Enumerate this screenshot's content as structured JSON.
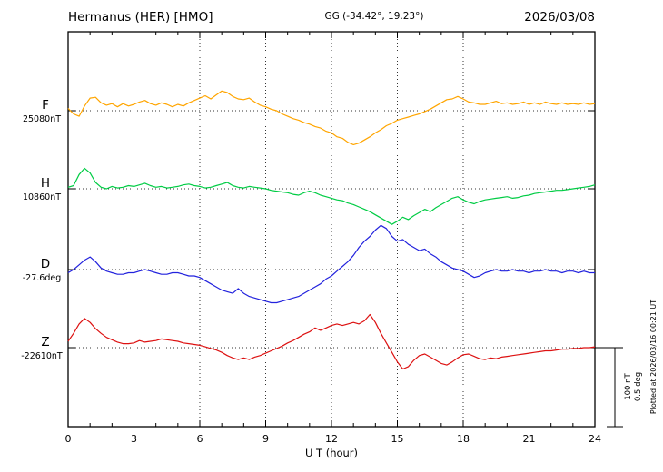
{
  "header": {
    "station": "Hermanus (HER)  [HMO]",
    "coords": "GG (-34.42°, 19.23°)",
    "date": "2026/03/08"
  },
  "side": {
    "scale_labels": [
      "100 nT",
      "0.5 deg"
    ],
    "plotted_at": "Plotted at 2026/03/16 00:21 UT"
  },
  "chart_data": {
    "type": "line",
    "title": "Hermanus (HER) [HMO] magnetogram 2026/03/08",
    "xlabel": "U T (hour)",
    "x_range": [
      0,
      24
    ],
    "x_ticks_major": [
      0,
      3,
      6,
      9,
      12,
      15,
      18,
      21,
      24
    ],
    "x_minor_step": 1,
    "grid": "dotted vertical lines at 3-hour intervals; dotted horizontal baseline per component",
    "legend_position": "left margin, colored component letters with baseline values",
    "t_start": 0,
    "t_step": 0.25,
    "scale": {
      "nT_per_division": 100,
      "deg_per_division": 0.5
    },
    "series": [
      {
        "id": "F",
        "label": "F",
        "unit": "nT",
        "baseline_label": "25080nT",
        "baseline_value": 25080,
        "color": "#ffa500",
        "offsets": [
          3,
          -4,
          -7,
          6,
          16,
          17,
          10,
          7,
          9,
          5,
          9,
          6,
          8,
          11,
          13,
          9,
          7,
          10,
          8,
          5,
          8,
          6,
          10,
          13,
          16,
          19,
          15,
          20,
          25,
          23,
          18,
          15,
          14,
          16,
          11,
          7,
          5,
          2,
          0,
          -4,
          -7,
          -10,
          -12,
          -15,
          -17,
          -20,
          -22,
          -26,
          -28,
          -33,
          -35,
          -40,
          -43,
          -41,
          -37,
          -33,
          -28,
          -24,
          -19,
          -16,
          -12,
          -10,
          -8,
          -6,
          -4,
          -1,
          2,
          6,
          10,
          14,
          15,
          18,
          15,
          11,
          10,
          8,
          8,
          10,
          12,
          9,
          10,
          8,
          9,
          11,
          8,
          10,
          8,
          11,
          9,
          8,
          10,
          8,
          9,
          8,
          10,
          8,
          9
        ]
      },
      {
        "id": "H",
        "label": "H",
        "unit": "nT",
        "baseline_label": "10860nT",
        "baseline_value": 10860,
        "color": "#00cc44",
        "offsets": [
          2,
          4,
          18,
          26,
          20,
          8,
          2,
          0,
          3,
          1,
          2,
          4,
          3,
          5,
          7,
          4,
          2,
          3,
          1,
          2,
          3,
          5,
          6,
          4,
          3,
          1,
          2,
          4,
          6,
          8,
          4,
          2,
          1,
          3,
          2,
          1,
          0,
          -2,
          -3,
          -4,
          -5,
          -7,
          -8,
          -5,
          -3,
          -5,
          -8,
          -10,
          -12,
          -14,
          -15,
          -18,
          -20,
          -23,
          -26,
          -29,
          -33,
          -37,
          -41,
          -45,
          -41,
          -36,
          -39,
          -34,
          -30,
          -26,
          -29,
          -24,
          -20,
          -16,
          -12,
          -10,
          -14,
          -17,
          -19,
          -16,
          -14,
          -13,
          -12,
          -11,
          -10,
          -12,
          -11,
          -9,
          -8,
          -6,
          -5,
          -4,
          -3,
          -2,
          -2,
          -1,
          0,
          1,
          2,
          3,
          5
        ]
      },
      {
        "id": "D",
        "label": "D",
        "unit": "deg",
        "baseline_label": "-27.6deg",
        "baseline_value": -27.6,
        "color": "#2222dd",
        "offsets": [
          -0.02,
          0,
          0.03,
          0.06,
          0.08,
          0.05,
          0.01,
          -0.01,
          -0.02,
          -0.03,
          -0.03,
          -0.02,
          -0.02,
          -0.01,
          0,
          -0.01,
          -0.02,
          -0.03,
          -0.03,
          -0.02,
          -0.02,
          -0.03,
          -0.04,
          -0.04,
          -0.05,
          -0.07,
          -0.09,
          -0.11,
          -0.13,
          -0.14,
          -0.15,
          -0.12,
          -0.15,
          -0.17,
          -0.18,
          -0.19,
          -0.2,
          -0.21,
          -0.21,
          -0.2,
          -0.19,
          -0.18,
          -0.17,
          -0.15,
          -0.13,
          -0.11,
          -0.09,
          -0.06,
          -0.04,
          -0.01,
          0.02,
          0.05,
          0.09,
          0.14,
          0.18,
          0.21,
          0.25,
          0.28,
          0.26,
          0.21,
          0.18,
          0.19,
          0.16,
          0.14,
          0.12,
          0.13,
          0.1,
          0.08,
          0.05,
          0.03,
          0.01,
          0,
          -0.01,
          -0.03,
          -0.05,
          -0.04,
          -0.02,
          -0.01,
          0,
          -0.01,
          -0.01,
          0,
          -0.01,
          -0.01,
          -0.02,
          -0.01,
          -0.01,
          0,
          -0.01,
          -0.01,
          -0.02,
          -0.01,
          -0.01,
          -0.02,
          -0.01,
          -0.02,
          -0.02
        ]
      },
      {
        "id": "Z",
        "label": "Z",
        "unit": "nT",
        "baseline_label": "-22610nT",
        "baseline_value": -22610,
        "color": "#dd1111",
        "offsets": [
          8,
          18,
          30,
          37,
          32,
          24,
          18,
          13,
          10,
          7,
          5,
          5,
          6,
          9,
          7,
          8,
          9,
          11,
          10,
          9,
          8,
          6,
          5,
          4,
          3,
          1,
          -1,
          -3,
          -6,
          -10,
          -13,
          -15,
          -13,
          -15,
          -12,
          -10,
          -7,
          -4,
          -1,
          2,
          6,
          9,
          13,
          17,
          20,
          25,
          22,
          25,
          28,
          30,
          28,
          30,
          32,
          30,
          34,
          42,
          32,
          18,
          6,
          -6,
          -18,
          -27,
          -24,
          -16,
          -10,
          -8,
          -12,
          -16,
          -20,
          -22,
          -18,
          -13,
          -9,
          -8,
          -11,
          -14,
          -15,
          -13,
          -14,
          -12,
          -11,
          -10,
          -9,
          -8,
          -7,
          -6,
          -5,
          -4,
          -4,
          -3,
          -2,
          -2,
          -1,
          -1,
          0,
          0,
          1
        ]
      }
    ]
  }
}
